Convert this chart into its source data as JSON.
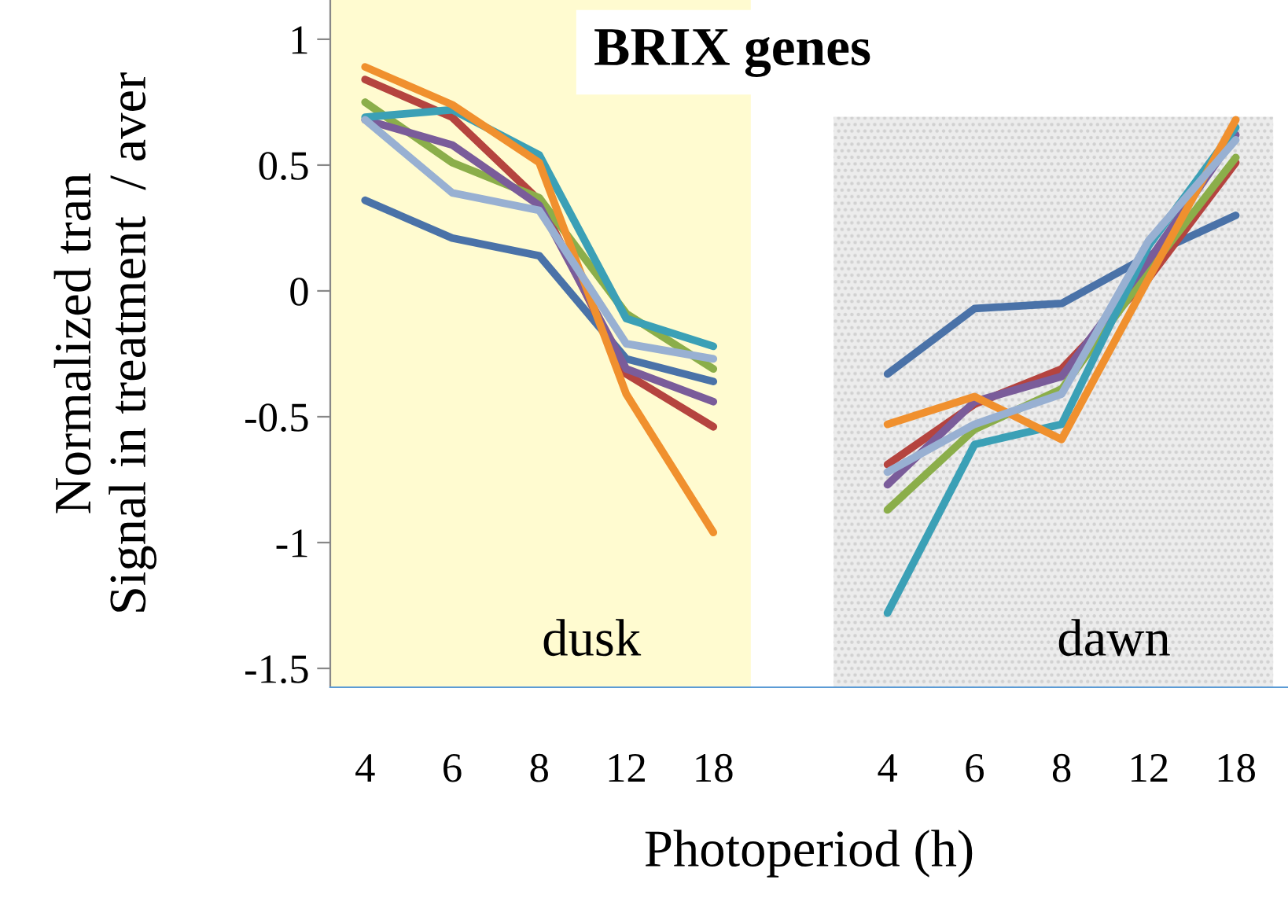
{
  "chart_data": {
    "type": "line",
    "title": "BRIX genes",
    "xlabel": "Photoperiod (h)",
    "ylabel": "Normalized tran\nSignal in treatment  / aver",
    "categories": [
      "4",
      "6",
      "8",
      "12",
      "18",
      null,
      "4",
      "6",
      "8",
      "12",
      "18"
    ],
    "series": [
      {
        "color": "#4a72a8",
        "values": [
          0.36,
          0.21,
          0.14,
          -0.27,
          -0.36,
          null,
          -0.33,
          -0.07,
          -0.05,
          0.14,
          0.3
        ]
      },
      {
        "color": "#b5443f",
        "values": [
          0.84,
          0.69,
          0.36,
          -0.33,
          -0.54,
          null,
          -0.69,
          -0.45,
          -0.31,
          0.05,
          0.51
        ]
      },
      {
        "color": "#8bae4a",
        "values": [
          0.75,
          0.51,
          0.37,
          -0.09,
          -0.31,
          null,
          -0.87,
          -0.55,
          -0.39,
          0.08,
          0.53
        ]
      },
      {
        "color": "#7a5c9a",
        "values": [
          0.68,
          0.58,
          0.34,
          -0.31,
          -0.44,
          null,
          -0.77,
          -0.44,
          -0.34,
          0.12,
          0.62
        ]
      },
      {
        "color": "#3ba0b6",
        "values": [
          0.69,
          0.72,
          0.54,
          -0.11,
          -0.22,
          null,
          -1.28,
          -0.61,
          -0.53,
          0.18,
          0.65
        ]
      },
      {
        "color": "#f0902e",
        "values": [
          0.89,
          0.74,
          0.51,
          -0.41,
          -0.96,
          null,
          -0.53,
          -0.42,
          -0.59,
          0.05,
          0.68
        ]
      },
      {
        "color": "#98b0d2",
        "values": [
          0.68,
          0.39,
          0.32,
          -0.21,
          -0.27,
          null,
          -0.72,
          -0.53,
          -0.41,
          0.2,
          0.6
        ]
      }
    ],
    "annotations": [
      "dusk",
      "dawn"
    ],
    "ylim": [
      -1.575,
      1.156
    ],
    "yticks": [
      {
        "value": -1.5,
        "label": "-1.5"
      },
      {
        "value": -1,
        "label": "-1"
      },
      {
        "value": -0.5,
        "label": "-0.5"
      },
      0,
      {
        "value": 0.5,
        "label": "0.5"
      },
      1
    ],
    "grid": false,
    "legend": false,
    "marker": "none",
    "line_style": "solid"
  }
}
